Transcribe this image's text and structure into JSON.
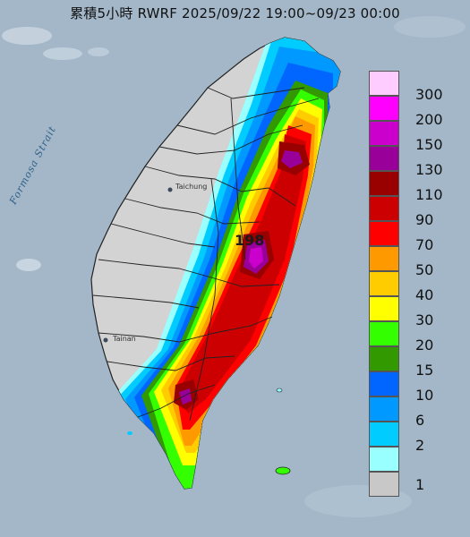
{
  "title": "累積5小時 RWRF 2025/09/22 19:00~09/23 00:00",
  "place_labels": {
    "strait": "Formosa Strait",
    "taichung": "Taichung",
    "tainan": "Tainan"
  },
  "max_value_label": "198",
  "legend": [
    {
      "label": "300",
      "color": "#ffccff"
    },
    {
      "label": "200",
      "color": "#ff00ff"
    },
    {
      "label": "150",
      "color": "#cc00cc"
    },
    {
      "label": "130",
      "color": "#990099"
    },
    {
      "label": "110",
      "color": "#990000"
    },
    {
      "label": "90",
      "color": "#cc0000"
    },
    {
      "label": "70",
      "color": "#ff0000"
    },
    {
      "label": "50",
      "color": "#ff9900"
    },
    {
      "label": "40",
      "color": "#ffcc00"
    },
    {
      "label": "30",
      "color": "#ffff00"
    },
    {
      "label": "20",
      "color": "#33ff00"
    },
    {
      "label": "15",
      "color": "#339900"
    },
    {
      "label": "10",
      "color": "#0066ff"
    },
    {
      "label": "6",
      "color": "#0099ff"
    },
    {
      "label": "2",
      "color": "#00ccff"
    },
    {
      "label": "1",
      "color": "#99ffff"
    },
    {
      "label": "",
      "color": "#c8c8c8"
    }
  ]
}
